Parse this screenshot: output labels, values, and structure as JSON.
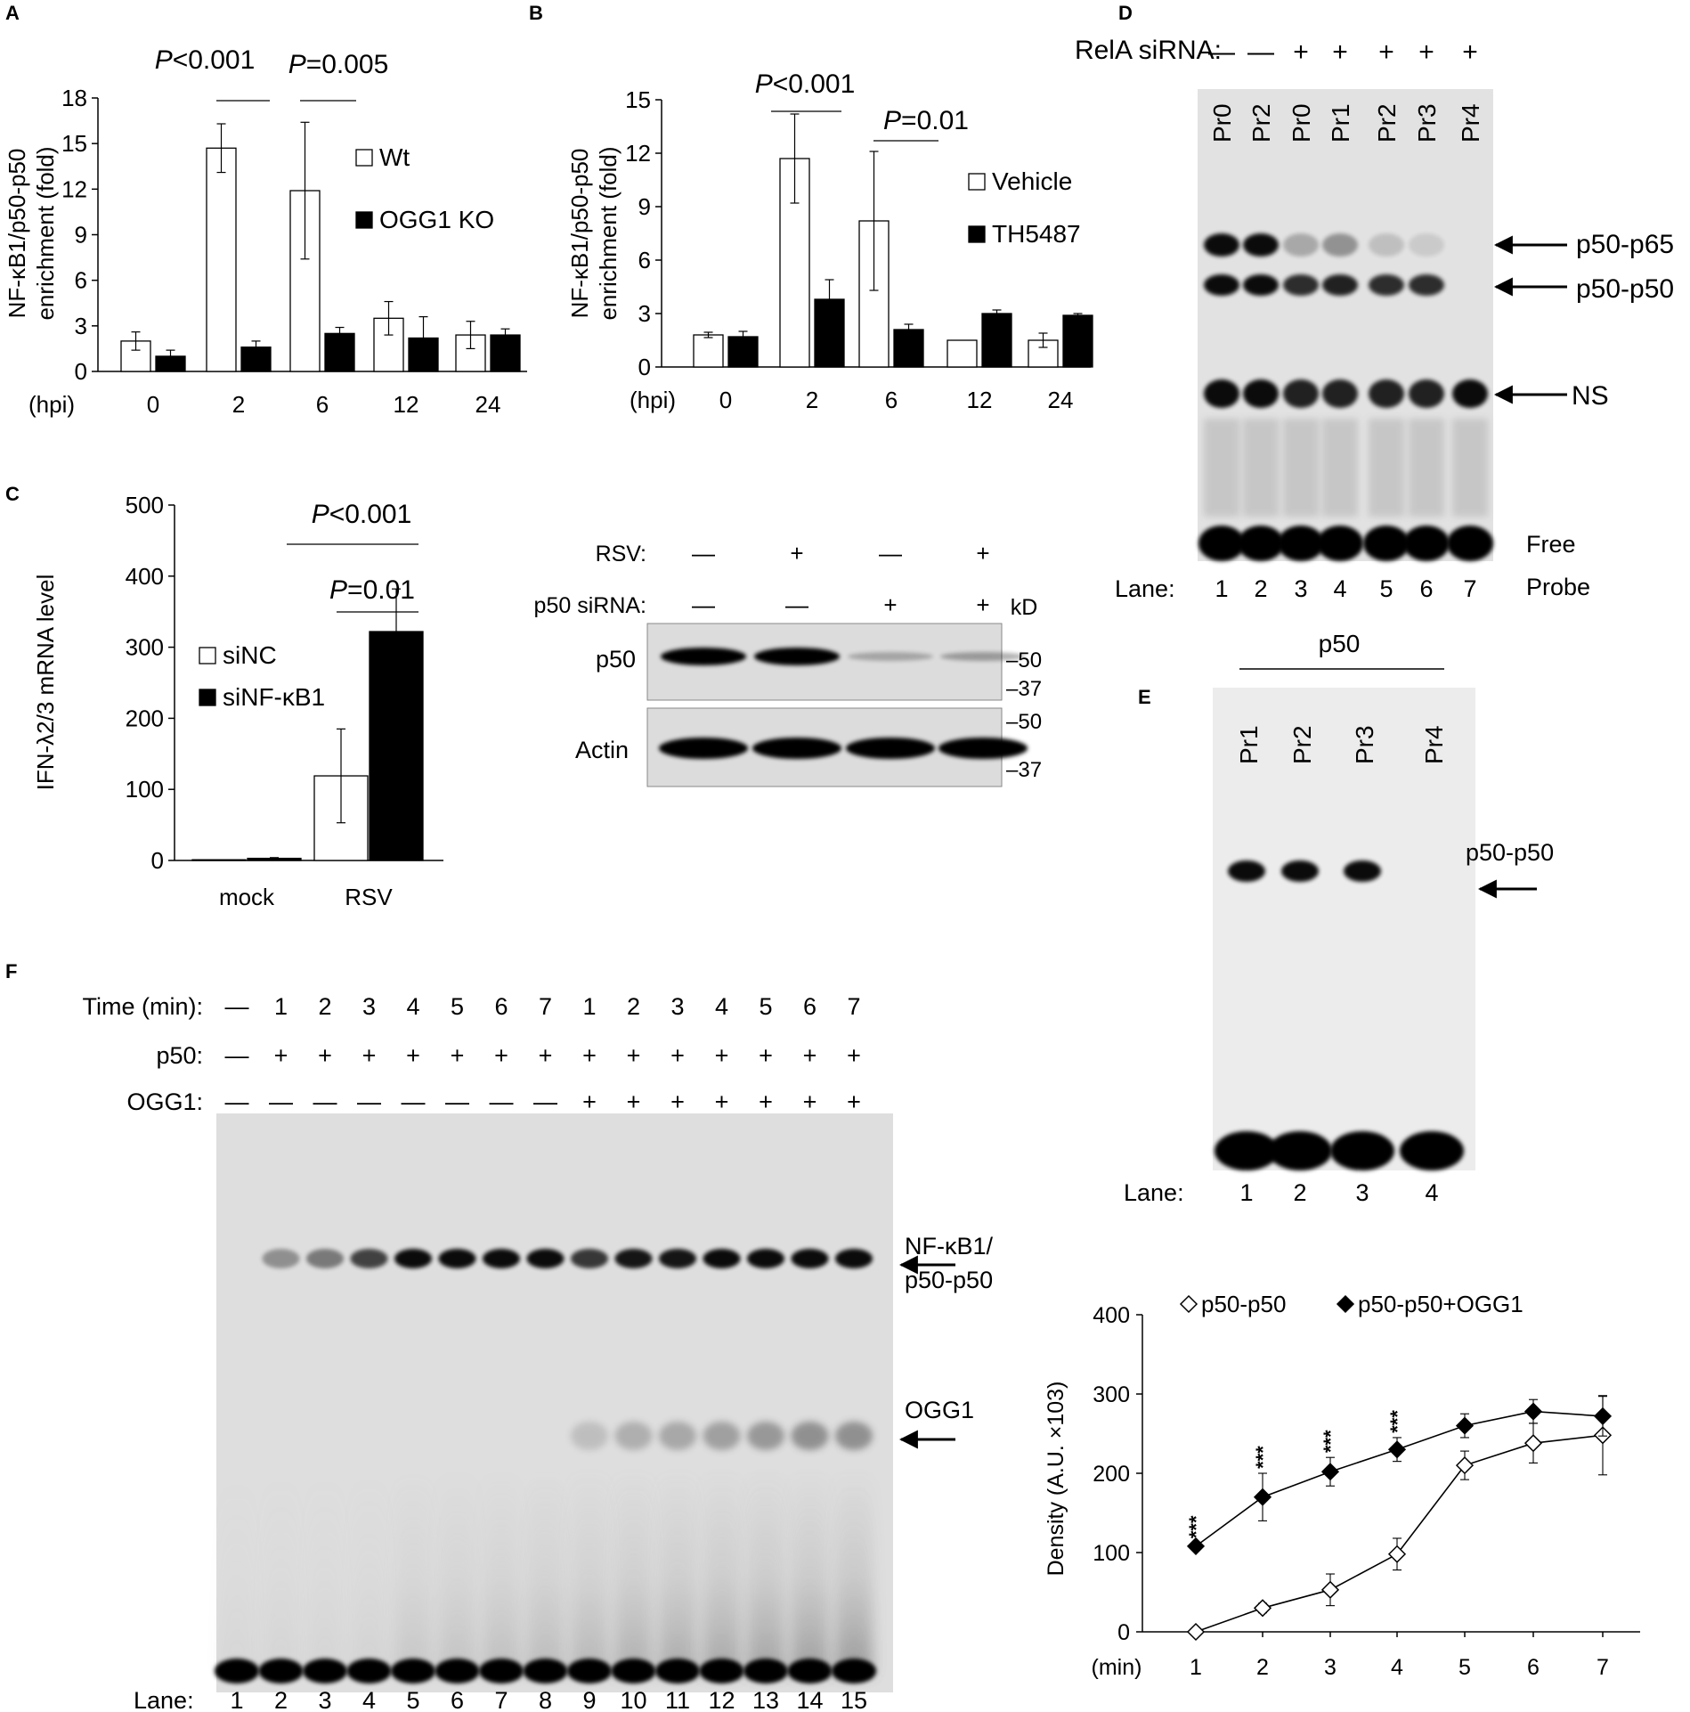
{
  "chart_data": [
    {
      "panel": "A",
      "type": "bar",
      "ylabel": [
        "NF-κB1/p50-p50",
        "enrichment (fold)"
      ],
      "xlabel": "(hpi)",
      "categories": [
        "0",
        "2",
        "6",
        "12",
        "24"
      ],
      "yticks": [
        "0",
        "3",
        "6",
        "9",
        "12",
        "15",
        "18"
      ],
      "ylim": [
        0,
        18
      ],
      "series": [
        {
          "name": "Wt",
          "fill": "#ffffff",
          "values": [
            2.0,
            14.7,
            11.9,
            3.5,
            2.4
          ],
          "errors": [
            0.6,
            1.6,
            4.5,
            1.1,
            0.9
          ]
        },
        {
          "name": "OGG1 KO",
          "fill": "#000000",
          "values": [
            1.0,
            1.6,
            2.5,
            2.2,
            2.4
          ],
          "errors": [
            0.4,
            0.4,
            0.4,
            1.4,
            0.4
          ]
        }
      ],
      "pvalues": [
        {
          "label": "P<0.001",
          "pair": [
            1,
            1
          ]
        },
        {
          "label": "P=0.005",
          "pair": [
            2,
            2
          ]
        }
      ]
    },
    {
      "panel": "B",
      "type": "bar",
      "ylabel": [
        "NF-κB1/p50-p50",
        "enrichment (fold)"
      ],
      "xlabel": "(hpi)",
      "categories": [
        "0",
        "2",
        "6",
        "12",
        "24"
      ],
      "yticks": [
        "0",
        "3",
        "6",
        "9",
        "12",
        "15"
      ],
      "ylim": [
        0,
        15
      ],
      "series": [
        {
          "name": "Vehicle",
          "fill": "#ffffff",
          "values": [
            1.8,
            11.7,
            8.2,
            1.5,
            1.5
          ],
          "errors": [
            0.15,
            2.5,
            3.9,
            0.0,
            0.4
          ]
        },
        {
          "name": "TH5487",
          "fill": "#000000",
          "values": [
            1.7,
            3.8,
            2.1,
            3.0,
            2.9
          ],
          "errors": [
            0.3,
            1.1,
            0.3,
            0.2,
            0.1
          ]
        }
      ],
      "pvalues": [
        {
          "label": "P<0.001",
          "pair": [
            1,
            1
          ]
        },
        {
          "label": "P=0.01",
          "pair": [
            2,
            2
          ]
        }
      ]
    },
    {
      "panel": "C",
      "type": "bar",
      "ylabel": [
        "IFN-λ2/3 mRNA level"
      ],
      "categories": [
        "mock",
        "RSV"
      ],
      "yticks": [
        "0",
        "100",
        "200",
        "300",
        "400",
        "500"
      ],
      "ylim": [
        0,
        500
      ],
      "series": [
        {
          "name": "siNC",
          "fill": "#ffffff",
          "values": [
            1,
            119
          ],
          "errors": [
            0,
            66
          ]
        },
        {
          "name": "siNF-κB1",
          "fill": "#000000",
          "values": [
            3,
            322
          ],
          "errors": [
            1,
            60
          ]
        }
      ],
      "pvalues": [
        {
          "label": "P<0.001",
          "pair": [
            0,
            1
          ]
        },
        {
          "label": "P=0.01",
          "pair": [
            1,
            1
          ]
        }
      ]
    },
    {
      "panel": "F-right",
      "type": "line",
      "ylabel": [
        "Density (A.U. ×103)"
      ],
      "xlabel": "(min)",
      "x": [
        1,
        2,
        3,
        4,
        5,
        6,
        7
      ],
      "yticks": [
        "0",
        "100",
        "200",
        "300",
        "400"
      ],
      "ylim": [
        0,
        400
      ],
      "series": [
        {
          "name": "p50-p50",
          "marker": "open-diamond",
          "values": [
            0,
            30,
            53,
            98,
            210,
            238,
            248
          ],
          "errors": [
            3,
            6,
            20,
            20,
            18,
            25,
            50
          ]
        },
        {
          "name": "p50-p50+OGG1",
          "marker": "filled-diamond",
          "values": [
            108,
            170,
            202,
            230,
            260,
            278,
            272
          ],
          "errors": [
            4,
            30,
            18,
            15,
            15,
            15,
            25
          ]
        }
      ],
      "significance": [
        {
          "x": 1,
          "label": "***"
        },
        {
          "x": 2,
          "label": "***"
        },
        {
          "x": 3,
          "label": "***"
        },
        {
          "x": 4,
          "label": "***"
        }
      ]
    }
  ],
  "panel_labels": {
    "a": "A",
    "b": "B",
    "c": "C",
    "d": "D",
    "e": "E",
    "f": "F"
  },
  "blot_c": {
    "rsv_label": "RSV:",
    "sirna_label": "p50 siRNA:",
    "rsv_marks": [
      "—",
      "+",
      "—",
      "+"
    ],
    "sirna_marks": [
      "—",
      "—",
      "+",
      "+"
    ],
    "kd_label": "kD",
    "row1_label": "p50",
    "row2_label": "Actin",
    "mw1": [
      "–50",
      "–37"
    ],
    "mw2": [
      "–50",
      "–37"
    ]
  },
  "gel_d": {
    "header_label": "RelA siRNA:",
    "header_marks": [
      "—",
      "—",
      "+",
      "+",
      "+",
      "+",
      "+"
    ],
    "probes": [
      "Pr0",
      "Pr2",
      "Pr0",
      "Pr1",
      "Pr2",
      "Pr3",
      "Pr4"
    ],
    "band_labels": [
      "p50-p65",
      "p50-p50",
      "NS"
    ],
    "free_label": "Free",
    "probe_label": "Probe",
    "lane_label": "Lane:",
    "lanes": [
      "1",
      "2",
      "3",
      "4",
      "5",
      "6",
      "7"
    ]
  },
  "gel_e": {
    "title": "p50",
    "probes": [
      "Pr1",
      "Pr2",
      "Pr3",
      "Pr4"
    ],
    "band_label": "p50-p50",
    "lane_label": "Lane:",
    "lanes": [
      "1",
      "2",
      "3",
      "4"
    ]
  },
  "gel_f": {
    "time_label": "Time (min):",
    "time_marks": [
      "—",
      "1",
      "2",
      "3",
      "4",
      "5",
      "6",
      "7",
      "1",
      "2",
      "3",
      "4",
      "5",
      "6",
      "7"
    ],
    "p50_label": "p50:",
    "p50_marks": [
      "—",
      "+",
      "+",
      "+",
      "+",
      "+",
      "+",
      "+",
      "+",
      "+",
      "+",
      "+",
      "+",
      "+",
      "+"
    ],
    "ogg1_label": "OGG1:",
    "ogg1_marks": [
      "—",
      "—",
      "—",
      "—",
      "—",
      "—",
      "—",
      "—",
      "+",
      "+",
      "+",
      "+",
      "+",
      "+",
      "+"
    ],
    "band1_label": [
      "NF-κB1/",
      "p50-p50"
    ],
    "band2_label": "OGG1",
    "lane_label": "Lane:",
    "lanes": [
      "1",
      "2",
      "3",
      "4",
      "5",
      "6",
      "7",
      "8",
      "9",
      "10",
      "11",
      "12",
      "13",
      "14",
      "15"
    ]
  }
}
